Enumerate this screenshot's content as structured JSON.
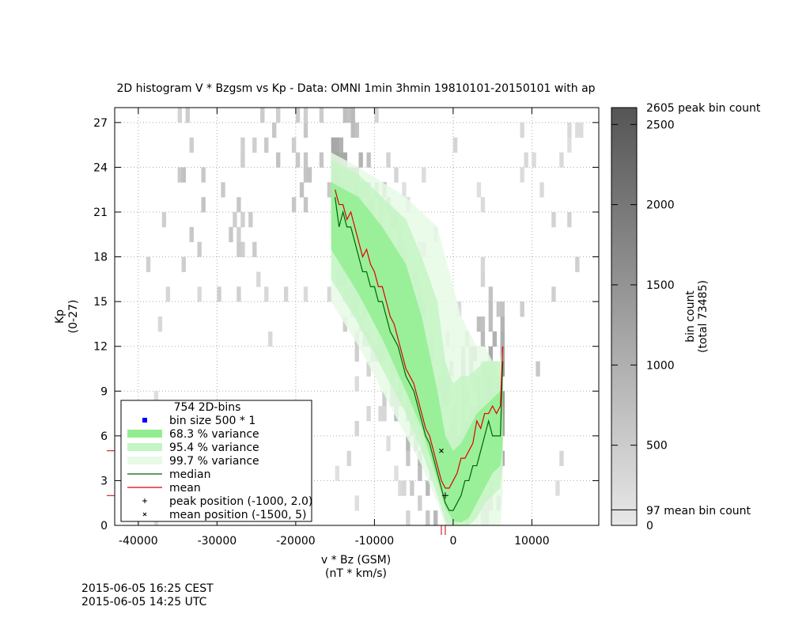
{
  "chart_data": {
    "type": "heatmap",
    "title": "2D histogram V * Bzgsm  vs  Kp  -  Data: OMNI 1min 3hmin 19810101-20150101 with ap",
    "xlabel": "v * Bz (GSM)",
    "xunit": "(nT * km/s)",
    "ylabel": "Kp",
    "yunit": "(0-27)",
    "xlim": [
      -43000,
      18500
    ],
    "ylim": [
      0,
      28
    ],
    "xticks": [
      -40000,
      -30000,
      -20000,
      -10000,
      0,
      10000
    ],
    "yticks": [
      0,
      3,
      6,
      9,
      12,
      15,
      18,
      21,
      24,
      27
    ],
    "grid": true,
    "colorbar": {
      "label": "bin count",
      "sublabel": "(total 73485)",
      "min": 0,
      "max": 2605,
      "ticks": [
        0,
        500,
        1000,
        1500,
        2000,
        2500
      ],
      "peak_label": "2605 peak bin count",
      "mean_label": "97 mean bin count",
      "mean_value": 97
    },
    "legend": {
      "position": "bottom-left",
      "header": "754 2D-bins",
      "entries": [
        {
          "label": "bin size 500 * 1",
          "style": "square",
          "color": "#0000ff"
        },
        {
          "label": "68.3 % variance",
          "style": "band",
          "color": "#90ee90"
        },
        {
          "label": "95.4 % variance",
          "style": "band",
          "color": "#c4f5c4"
        },
        {
          "label": "99.7 % variance",
          "style": "band",
          "color": "#e6fae6"
        },
        {
          "label": "median",
          "style": "line",
          "color": "#006400"
        },
        {
          "label": "mean",
          "style": "line",
          "color": "#e00000"
        },
        {
          "label": "peak position (-1000, 2.0)",
          "style": "plus",
          "color": "#000000"
        },
        {
          "label": "mean position (-1500, 5)",
          "style": "cross",
          "color": "#000000"
        }
      ]
    },
    "peak_position": [
      -1000,
      2.0
    ],
    "mean_position": [
      -1500,
      5
    ],
    "median": {
      "x": [
        -15000,
        -14500,
        -14000,
        -13500,
        -13000,
        -12500,
        -12000,
        -11500,
        -11000,
        -10500,
        -10000,
        -9500,
        -9000,
        -8500,
        -8000,
        -7500,
        -7000,
        -6500,
        -6000,
        -5500,
        -5000,
        -4500,
        -4000,
        -3500,
        -3000,
        -2500,
        -2000,
        -1500,
        -1000,
        -500,
        0,
        500,
        1000,
        1500,
        2000,
        2500,
        3000,
        3500,
        4000,
        4500,
        5000,
        5500,
        6000,
        6300
      ],
      "y": [
        22,
        20,
        21,
        20,
        20,
        19,
        18,
        17,
        17,
        16,
        16,
        15,
        15,
        14,
        13,
        12.5,
        12,
        11,
        10,
        9.5,
        9,
        8,
        7,
        6,
        5.5,
        4.5,
        3.5,
        2.5,
        1.5,
        1,
        1,
        1.5,
        2,
        3,
        3,
        4,
        4,
        5,
        6,
        7,
        6,
        6,
        6,
        11
      ]
    },
    "mean": {
      "x": [
        -15000,
        -14500,
        -14000,
        -13500,
        -13000,
        -12500,
        -12000,
        -11500,
        -11000,
        -10500,
        -10000,
        -9500,
        -9000,
        -8500,
        -8000,
        -7500,
        -7000,
        -6500,
        -6000,
        -5500,
        -5000,
        -4500,
        -4000,
        -3500,
        -3000,
        -2500,
        -2000,
        -1500,
        -1000,
        -500,
        0,
        500,
        1000,
        1500,
        2000,
        2500,
        3000,
        3500,
        4000,
        4500,
        5000,
        5500,
        6000,
        6300
      ],
      "y": [
        22.5,
        21.5,
        21.5,
        20.5,
        21,
        20,
        19,
        18,
        18.5,
        17.5,
        17,
        16,
        16,
        15,
        14,
        13.5,
        12.5,
        11.5,
        10.5,
        10,
        9.5,
        8.5,
        7.5,
        6.5,
        6,
        5,
        4,
        3,
        2.5,
        2.5,
        3,
        3.5,
        4.5,
        4.5,
        5,
        5.5,
        7,
        6.5,
        7.5,
        7.5,
        8,
        7.5,
        8,
        12
      ]
    },
    "variance_bands": [
      {
        "name": "99.7 % variance",
        "color": "#e6fae6",
        "x": [
          -15500,
          -12000,
          -9000,
          -6000,
          -4000,
          -2000,
          -1000,
          0,
          1000,
          2000,
          3000,
          4000,
          5000,
          6000,
          6300
        ],
        "lower": [
          15,
          12,
          9,
          6,
          4,
          1.5,
          0,
          0,
          0,
          0,
          0,
          0,
          0,
          0,
          2
        ],
        "upper": [
          25,
          24,
          23,
          22,
          21,
          20,
          18,
          16,
          14,
          13,
          12,
          12,
          11,
          11,
          12
        ]
      },
      {
        "name": "95.4 % variance",
        "color": "#c4f5c4",
        "x": [
          -15500,
          -12000,
          -9000,
          -6000,
          -4000,
          -2000,
          -1000,
          0,
          1000,
          2000,
          3000,
          4000,
          5000,
          6000,
          6300
        ],
        "lower": [
          16.5,
          13.5,
          10.5,
          7.5,
          5,
          2,
          0.3,
          0,
          0,
          0,
          0.5,
          1.5,
          2,
          2.5,
          4
        ],
        "upper": [
          24.5,
          23.5,
          22,
          20.5,
          18,
          15,
          11,
          9.5,
          10,
          10,
          10.5,
          11,
          11,
          11,
          12
        ]
      },
      {
        "name": "68.3 % variance",
        "color": "#90ee90",
        "x": [
          -15500,
          -12000,
          -9000,
          -6000,
          -4000,
          -2000,
          -1000,
          0,
          1000,
          2000,
          3000,
          4000,
          5000,
          6000,
          6300
        ],
        "lower": [
          18.5,
          15.5,
          12.5,
          9,
          6.5,
          3,
          1.2,
          0.3,
          0.2,
          0.5,
          1.5,
          2.5,
          3.5,
          4,
          5.5
        ],
        "upper": [
          23,
          22,
          20,
          17.5,
          14,
          9,
          6,
          5,
          5.5,
          6.5,
          7.5,
          8,
          8.5,
          9,
          11
        ]
      }
    ]
  },
  "timestamps": {
    "local": "2015-06-05 16:25 CEST",
    "utc": "2015-06-05 14:25 UTC"
  }
}
